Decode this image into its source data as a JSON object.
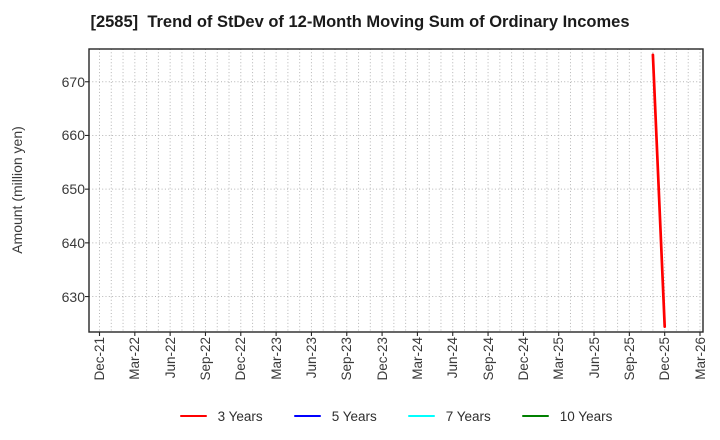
{
  "chart_data": {
    "type": "line",
    "title": "[2585]  Trend of StDev of 12-Month Moving Sum of Ordinary Incomes",
    "ylabel": "Amount (million yen)",
    "xlabel": "",
    "ylim": [
      623.4,
      676.1
    ],
    "yticks": [
      630,
      640,
      650,
      660,
      670
    ],
    "x_tick_labels": [
      "Dec-21",
      "Mar-22",
      "Jun-22",
      "Sep-22",
      "Dec-22",
      "Mar-23",
      "Jun-23",
      "Sep-23",
      "Dec-23",
      "Mar-24",
      "Jun-24",
      "Sep-24",
      "Dec-24",
      "Mar-25",
      "Jun-25",
      "Sep-25",
      "Dec-25",
      "Mar-26"
    ],
    "grid": {
      "show": true,
      "style": "dotted",
      "vertical": "monthly",
      "horizontal": "at-yticks"
    },
    "legend": {
      "position": "bottom-center",
      "entries": [
        "3 Years",
        "5 Years",
        "7 Years",
        "10 Years"
      ]
    },
    "series": [
      {
        "name": "3 Years",
        "color": "#ff0000",
        "points": [
          [
            "Nov-25",
            675.0
          ],
          [
            "Dec-25",
            624.4
          ]
        ]
      },
      {
        "name": "5 Years",
        "color": "#0000ff",
        "points": []
      },
      {
        "name": "7 Years",
        "color": "#00ffff",
        "points": []
      },
      {
        "name": "10 Years",
        "color": "#008000",
        "points": []
      }
    ],
    "axis_color": "#262626",
    "grid_color": "#b5b5b5",
    "text_color": "#3a3a3a"
  }
}
